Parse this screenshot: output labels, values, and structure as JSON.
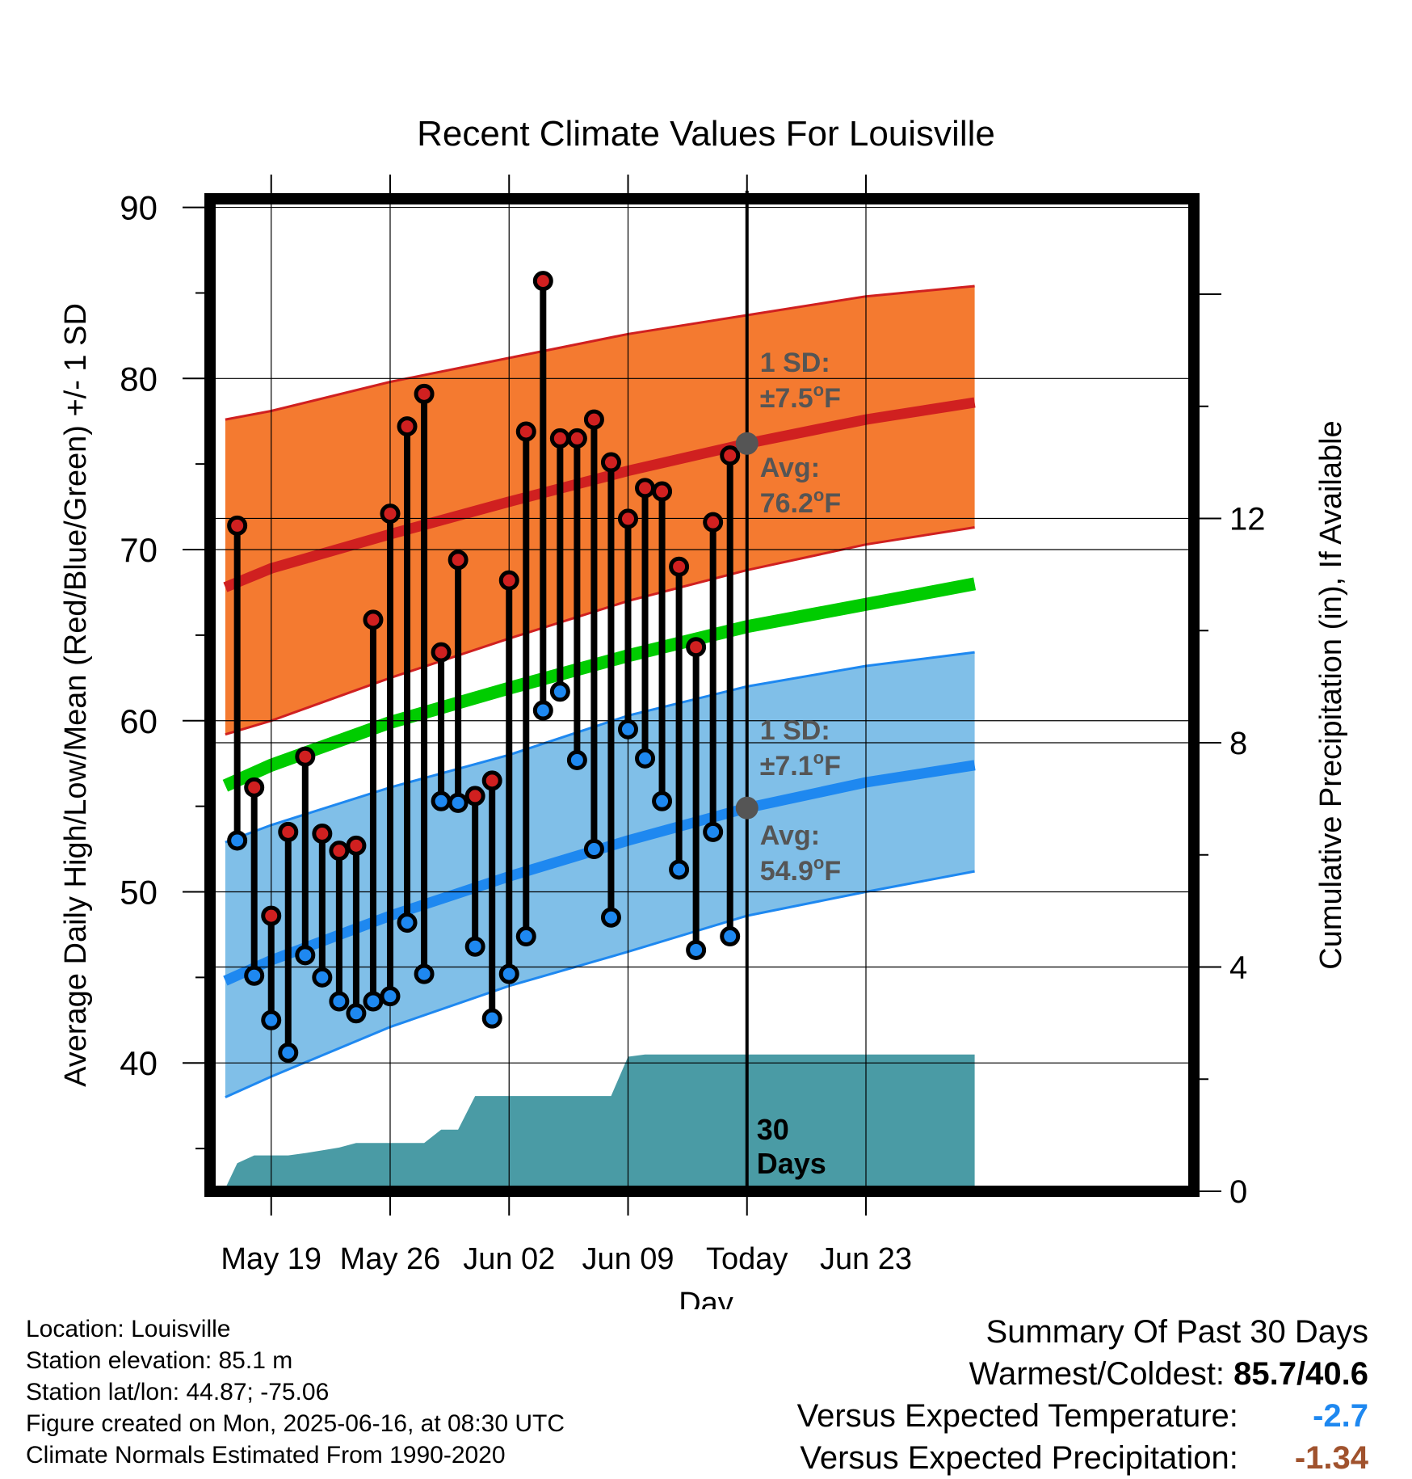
{
  "chart_data": {
    "type": "line",
    "title": "Recent Climate Values For Louisville",
    "xlabel": "Day",
    "ylabel": "Average Daily High/Low/Mean (Red/Blue/Green) +/- 1 SD",
    "y2label": "Cumulative Precipitation (in), If Available",
    "ylim": [
      32.5,
      90.5
    ],
    "y2lim": [
      0,
      17.7
    ],
    "yticks": [
      40,
      50,
      60,
      70,
      80,
      90
    ],
    "y2ticks": [
      0,
      4,
      8,
      12
    ],
    "xlim": [
      -3.6,
      54.3
    ],
    "xtick_labels": [
      {
        "day": 0,
        "label": "May 19"
      },
      {
        "day": 7,
        "label": "May 26"
      },
      {
        "day": 14,
        "label": "Jun 02"
      },
      {
        "day": 21,
        "label": "Jun 09"
      },
      {
        "day": 28,
        "label": "Today"
      },
      {
        "day": 35,
        "label": "Jun 23"
      }
    ],
    "today_day": 28,
    "window_label": "30 Days",
    "grid": true,
    "colors": {
      "high_band": "#f47a30",
      "high_line": "#d02020",
      "low_band": "#80bfe8",
      "low_line": "#1e88f0",
      "mean_line": "#00cc00",
      "precip": "#4a9ba5",
      "high_marker": "#d02020",
      "low_marker": "#1e88f0",
      "avg_marker": "#555555",
      "annotation": "#555555"
    },
    "normals": {
      "days": [
        -2.7,
        0,
        7,
        14,
        21,
        28,
        35,
        41.4
      ],
      "high_avg": [
        67.8,
        68.9,
        70.9,
        72.8,
        74.6,
        76.2,
        77.6,
        78.6
      ],
      "high_sd_upper": [
        77.6,
        78.1,
        79.8,
        81.2,
        82.6,
        83.7,
        84.8,
        85.4
      ],
      "high_sd_lower": [
        59.2,
        60.0,
        62.5,
        64.8,
        67.0,
        68.8,
        70.3,
        71.3
      ],
      "low_avg": [
        44.8,
        46.0,
        48.6,
        50.9,
        53.0,
        54.9,
        56.4,
        57.4
      ],
      "low_sd_upper": [
        52.9,
        53.9,
        56.1,
        58.0,
        60.3,
        62.0,
        63.2,
        64.0
      ],
      "low_sd_lower": [
        38.0,
        39.2,
        42.1,
        44.5,
        46.5,
        48.6,
        50.0,
        51.2
      ],
      "mean": [
        56.2,
        57.4,
        59.9,
        61.9,
        63.8,
        65.5,
        66.8,
        68.0
      ]
    },
    "series": [
      {
        "name": "High",
        "days": [
          -2,
          -1,
          0,
          1,
          2,
          3,
          4,
          5,
          6,
          7,
          8,
          9,
          10,
          11,
          12,
          13,
          14,
          15,
          16,
          17,
          18,
          19,
          20,
          21,
          22,
          23,
          24,
          25,
          26,
          27
        ],
        "values": [
          71.4,
          56.1,
          48.6,
          53.5,
          57.9,
          53.4,
          52.4,
          52.7,
          65.9,
          72.1,
          77.2,
          79.1,
          64.0,
          69.4,
          55.6,
          56.5,
          68.2,
          76.9,
          85.7,
          76.5,
          76.5,
          77.6,
          75.1,
          71.8,
          73.6,
          73.4,
          69.0,
          64.3,
          71.6,
          75.5
        ]
      },
      {
        "name": "Low",
        "days": [
          -2,
          -1,
          0,
          1,
          2,
          3,
          4,
          5,
          6,
          7,
          8,
          9,
          10,
          11,
          12,
          13,
          14,
          15,
          16,
          17,
          18,
          19,
          20,
          21,
          22,
          23,
          24,
          25,
          26,
          27
        ],
        "values": [
          53.0,
          45.1,
          42.5,
          40.6,
          46.3,
          45.0,
          43.6,
          42.9,
          43.6,
          43.9,
          48.2,
          45.2,
          55.3,
          55.2,
          46.8,
          42.6,
          45.2,
          47.4,
          60.6,
          61.7,
          57.7,
          52.5,
          48.5,
          59.5,
          57.8,
          55.3,
          51.3,
          46.6,
          53.5,
          47.4
        ]
      }
    ],
    "precip": {
      "days": [
        -2.7,
        -2,
        -1,
        0,
        1,
        2,
        3,
        4,
        5,
        6,
        7,
        8,
        9,
        10,
        11,
        12,
        13,
        14,
        15,
        16,
        17,
        18,
        19,
        20,
        21,
        22,
        23,
        28,
        41.4
      ],
      "values": [
        0.05,
        0.5,
        0.64,
        0.64,
        0.64,
        0.68,
        0.73,
        0.78,
        0.86,
        0.86,
        0.86,
        0.86,
        0.86,
        1.1,
        1.1,
        1.7,
        1.7,
        1.7,
        1.7,
        1.7,
        1.7,
        1.7,
        1.7,
        1.7,
        2.4,
        2.44,
        2.44,
        2.44,
        2.44
      ]
    },
    "annotations": {
      "high_sd": {
        "line1": "1 SD:",
        "line2": "±7.5",
        "unit": "F"
      },
      "high_avg": {
        "line1": "Avg:",
        "line2": "76.2",
        "unit": "F",
        "value": 76.2
      },
      "low_sd": {
        "line1": "1 SD:",
        "line2": "±7.1",
        "unit": "F"
      },
      "low_avg": {
        "line1": "Avg:",
        "line2": "54.9",
        "unit": "F",
        "value": 54.9
      },
      "degree_symbol": "o"
    }
  },
  "footer": {
    "location": "Location: Louisville",
    "elevation": "Station elevation: 85.1 m",
    "latlon": "Station lat/lon: 44.87; -75.06",
    "created": "Figure created on Mon, 2025-06-16, at 08:30 UTC",
    "normals": "Climate Normals Estimated From 1990-2020"
  },
  "summary": {
    "heading": "Summary Of Past 30 Days",
    "warmest_label": "Warmest/Coldest:",
    "warmest_value": "85.7/40.6",
    "temp_label": "Versus Expected Temperature:",
    "temp_value": "-2.7",
    "temp_color": "#1e88f0",
    "precip_label": "Versus Expected Precipitation:",
    "precip_value": "-1.34",
    "precip_color": "#a0522d"
  }
}
